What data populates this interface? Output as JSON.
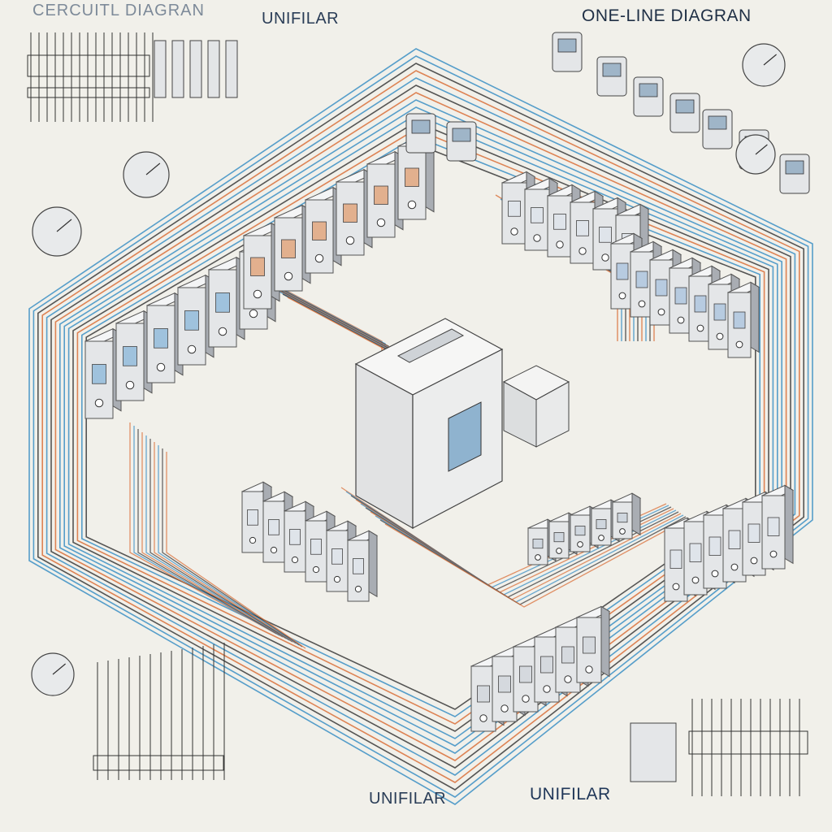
{
  "labels": {
    "top_left": "CERCUITL DIAGRAN",
    "top_center": "UNIFILAR",
    "top_right": "ONE-LINE DIAGRAN",
    "bottom_center": "UNIFILAR",
    "bottom_right": "UNIFILAR"
  },
  "colors": {
    "background": "#f1f0ea",
    "wire_blue": "#3b8fc4",
    "wire_orange": "#d9703a",
    "wire_dark": "#3a3a3a",
    "device_body": "#e4e6e8",
    "device_shadow": "#a9adb3"
  }
}
